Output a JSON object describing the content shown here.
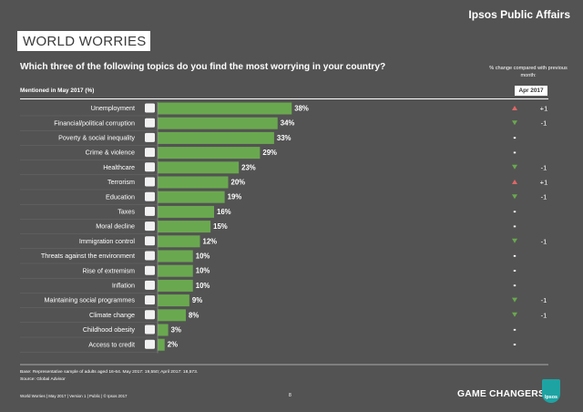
{
  "header": {
    "brand": "Ipsos Public Affairs",
    "report_title": "WORLD WORRIES"
  },
  "question": "Which three of the following topics do you find the most worrying in your country?",
  "change_heading": "% change compared with previous month:",
  "mentioned_label": "Mentioned in May 2017 (%)",
  "comparison_period": "Apr 2017",
  "colors": {
    "background": "#535353",
    "bar": "#6aa84f",
    "up": "#e06666",
    "down": "#6aa84f",
    "neutral": "#ffffff"
  },
  "chart_data": {
    "type": "bar",
    "orientation": "horizontal",
    "categories": [
      "Unemployment",
      "Financial/political corruption",
      "Poverty & social inequality",
      "Crime & violence",
      "Healthcare",
      "Terrorism",
      "Education",
      "Taxes",
      "Moral decline",
      "Immigration control",
      "Threats against the environment",
      "Rise of extremism",
      "Inflation",
      "Maintaining social programmes",
      "Climate change",
      "Childhood obesity",
      "Access to credit"
    ],
    "values": [
      38,
      34,
      33,
      29,
      23,
      20,
      19,
      16,
      15,
      12,
      10,
      10,
      10,
      9,
      8,
      3,
      2
    ],
    "value_labels": [
      "38%",
      "34%",
      "33%",
      "29%",
      "23%",
      "20%",
      "19%",
      "16%",
      "15%",
      "12%",
      "10%",
      "10%",
      "10%",
      "9%",
      "8%",
      "3%",
      "2%"
    ],
    "xlim": [
      0,
      40
    ],
    "change_labels": [
      "+1",
      "-1",
      "",
      "",
      "-1",
      "+1",
      "-1",
      "",
      "",
      "-1",
      "",
      "",
      "",
      "-1",
      "-1",
      "",
      ""
    ],
    "change_direction": [
      "up",
      "down",
      "same",
      "same",
      "down",
      "up",
      "down",
      "same",
      "same",
      "down",
      "same",
      "same",
      "same",
      "down",
      "down",
      "same",
      "same"
    ],
    "category_icons": [
      "unemployment-icon",
      "corruption-icon",
      "poverty-icon",
      "crime-icon",
      "healthcare-icon",
      "terrorism-icon",
      "education-icon",
      "taxes-icon",
      "moral-decline-icon",
      "immigration-icon",
      "environment-icon",
      "extremism-icon",
      "inflation-icon",
      "social-programmes-icon",
      "climate-icon",
      "obesity-icon",
      "credit-icon"
    ],
    "legend": false,
    "grid": false
  },
  "footnotes": {
    "base": "Base: Representative sample of adults aged 16-64. May 2017: 19,550; April 2017: 18,573.",
    "source": "Source: Global Advisor"
  },
  "footer": {
    "left": "World Worries  |  May 2017  |  Version 1  |  Public  |  © Ipsos 2017",
    "page": "8",
    "tagline": "GAME CHANGERS",
    "logo": "Ipsos"
  }
}
